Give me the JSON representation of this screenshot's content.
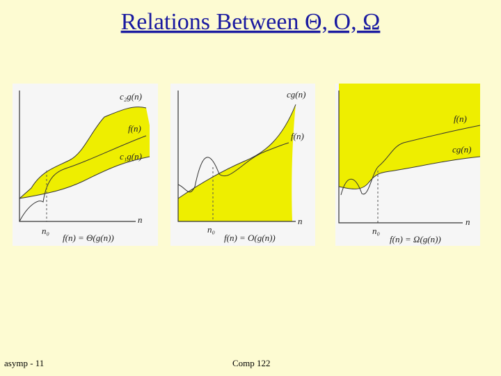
{
  "header": {
    "title": "Relations Between Θ, O, Ω"
  },
  "panels": [
    {
      "labels": [
        "c₂g(n)",
        "f(n)",
        "c₁g(n)"
      ],
      "n": "n",
      "n0": "n₀",
      "formula": "f(n) = Θ(g(n))"
    },
    {
      "labels": [
        "cg(n)",
        "f(n)"
      ],
      "n": "n",
      "n0": "n₀",
      "formula": "f(n) = O(g(n))"
    },
    {
      "labels": [
        "f(n)",
        "cg(n)"
      ],
      "n": "n",
      "n0": "n₀",
      "formula": "f(n) = Ω(g(n))"
    }
  ],
  "footer": {
    "left": "asymp - 11",
    "center": "Comp 122"
  }
}
